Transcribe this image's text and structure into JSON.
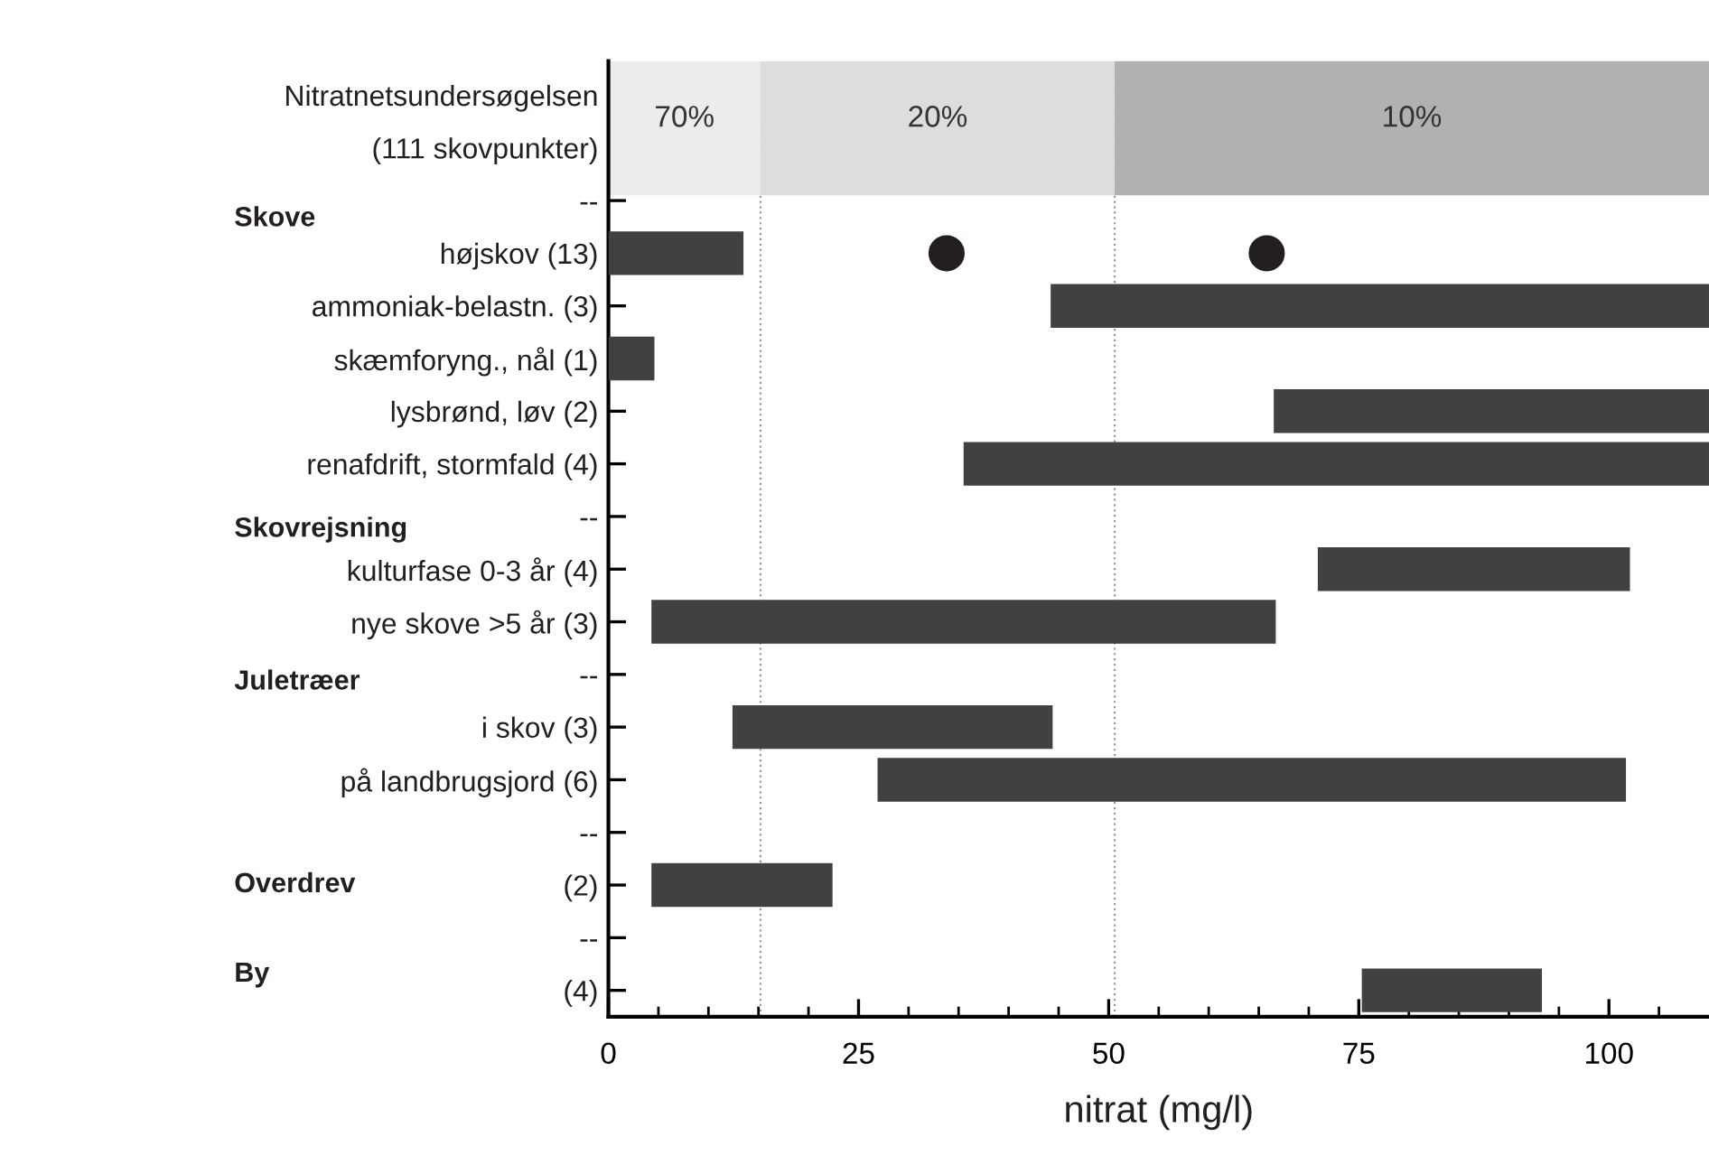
{
  "chart_data": {
    "type": "bar",
    "orientation": "horizontal",
    "xlabel": "nitrat (mg/l)",
    "categories": [
      "Nitratnetsundersøgelsen",
      "(111 skovpunkter)",
      "--",
      "højskov (13)",
      "ammoniak-belastn. (3)",
      "skæmforyng., nål (1)",
      "lysbrønd, løv (2)",
      "renafdrift, stormfald (4)",
      "--",
      "kulturfase 0-3 år (4)",
      "nye skove >5 år (3)",
      "--",
      "i skov (3)",
      "på landbrugsjord (6)",
      "--",
      "(2)",
      "--",
      "(4)"
    ],
    "series": [
      {
        "color": "#404142",
        "base": [
          null,
          null,
          null,
          0,
          44.2,
          0,
          66.5,
          35.5,
          null,
          70.9,
          4.3,
          null,
          12.4,
          26.9,
          null,
          4.3,
          null,
          75.3
        ],
        "values": [
          null,
          null,
          null,
          13.5,
          65.8,
          4.6,
          43.5,
          74.5,
          null,
          31.2,
          62.4,
          null,
          32.0,
          74.8,
          null,
          18.1,
          null,
          18.0
        ]
      },
      {
        "type": "scatter",
        "color": "#231f20",
        "marker": "circle",
        "values": [
          null,
          null,
          null,
          33.8,
          null,
          null,
          null,
          null,
          null,
          null,
          null,
          null,
          null,
          null,
          null,
          null,
          null,
          null
        ]
      },
      {
        "type": "scatter",
        "color": "#231f20",
        "marker": "circle",
        "values": [
          null,
          null,
          null,
          65.8,
          null,
          null,
          null,
          null,
          null,
          null,
          null,
          null,
          null,
          null,
          null,
          null,
          null,
          null
        ]
      }
    ],
    "xlim": [
      0,
      110
    ],
    "xticks": [
      0,
      {
        "value": 5,
        "label": null
      },
      {
        "value": 10,
        "label": null
      },
      {
        "value": 15,
        "label": null
      },
      {
        "value": 20,
        "label": null
      },
      25,
      {
        "value": 30,
        "label": null
      },
      {
        "value": 35,
        "label": null
      },
      {
        "value": 40,
        "label": null
      },
      {
        "value": 45,
        "label": null
      },
      50,
      {
        "value": 55,
        "label": null
      },
      {
        "value": 60,
        "label": null
      },
      {
        "value": 65,
        "label": null
      },
      {
        "value": 70,
        "label": null
      },
      75,
      {
        "value": 80,
        "label": null
      },
      {
        "value": 85,
        "label": null
      },
      {
        "value": 90,
        "label": null
      },
      {
        "value": 95,
        "label": null
      },
      100,
      {
        "value": 105,
        "label": null
      }
    ],
    "bands": [
      {
        "axis": "x",
        "from": 0,
        "to": 15.2,
        "label": "70%",
        "color": "#ececed"
      },
      {
        "axis": "x",
        "from": 15.2,
        "to": 50.6,
        "label": "20%",
        "color": "#dcdddf"
      },
      {
        "axis": "x",
        "from": 50.6,
        "to": 110,
        "label": "10%",
        "color": "#b0b1b3"
      }
    ],
    "ref_lines": [
      {
        "axis": "x",
        "value": 15.2,
        "color": "#9a9a9a",
        "line_style": "dotted"
      },
      {
        "axis": "x",
        "value": 50.6,
        "color": "#9a9a9a",
        "line_style": "dotted"
      }
    ],
    "annotations": [
      "Skove",
      "Skovrejsning",
      "Juletræer",
      "Overdrev",
      "By"
    ],
    "grid": false,
    "legend": false
  }
}
